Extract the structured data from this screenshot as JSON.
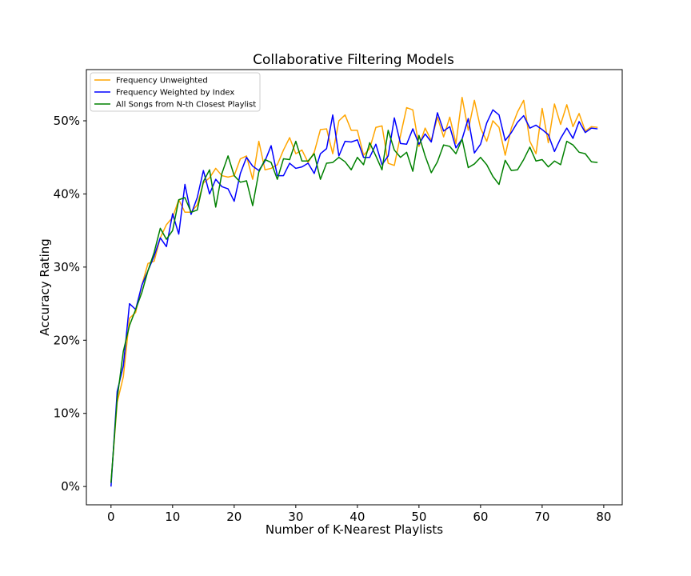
{
  "chart_data": {
    "type": "line",
    "title": "Collaborative Filtering Models",
    "xlabel": "Number of K-Nearest Playlists",
    "ylabel": "Accuracy Rating",
    "xlim": [
      -4,
      83
    ],
    "ylim": [
      -2.5,
      57
    ],
    "xticks": [
      0,
      10,
      20,
      30,
      40,
      50,
      60,
      70,
      80
    ],
    "xtick_labels": [
      "0",
      "10",
      "20",
      "30",
      "40",
      "50",
      "60",
      "70",
      "80"
    ],
    "yticks": [
      0,
      10,
      20,
      30,
      40,
      50
    ],
    "ytick_labels": [
      "0%",
      "10%",
      "20%",
      "30%",
      "40%",
      "50%"
    ],
    "grid": false,
    "legend_position": "top-left",
    "x": [
      0,
      1,
      2,
      3,
      4,
      5,
      6,
      7,
      8,
      9,
      10,
      11,
      12,
      13,
      14,
      15,
      16,
      17,
      18,
      19,
      20,
      21,
      22,
      23,
      24,
      25,
      26,
      27,
      28,
      29,
      30,
      31,
      32,
      33,
      34,
      35,
      36,
      37,
      38,
      39,
      40,
      41,
      42,
      43,
      44,
      45,
      46,
      47,
      48,
      49,
      50,
      51,
      52,
      53,
      54,
      55,
      56,
      57,
      58,
      59,
      60,
      61,
      62,
      63,
      64,
      65,
      66,
      67,
      68,
      69,
      70,
      71,
      72,
      73,
      74,
      75,
      76,
      77,
      78,
      79
    ],
    "series": [
      {
        "name": "Frequency Unweighted",
        "color": "#ffa500",
        "values": [
          0.5,
          11.5,
          15.0,
          23.0,
          23.8,
          27.5,
          30.5,
          30.8,
          34.0,
          35.8,
          36.8,
          39.2,
          37.5,
          37.5,
          38.5,
          41.5,
          42.2,
          43.5,
          42.5,
          42.3,
          42.5,
          44.8,
          45.2,
          42.0,
          47.2,
          43.3,
          43.5,
          44.0,
          46.0,
          47.7,
          45.5,
          46.0,
          44.3,
          45.7,
          48.8,
          48.9,
          45.5,
          50.0,
          50.8,
          48.7,
          48.7,
          45.3,
          46.2,
          49.1,
          49.3,
          44.2,
          43.9,
          48.0,
          51.8,
          51.5,
          46.5,
          49.0,
          47.3,
          50.5,
          47.8,
          50.5,
          46.9,
          53.2,
          48.7,
          52.8,
          49.0,
          47.2,
          50.0,
          49.1,
          45.3,
          49.0,
          51.2,
          52.8,
          47.2,
          45.5,
          51.7,
          47.0,
          52.3,
          49.5,
          52.2,
          49.2,
          51.0,
          48.6,
          49.2,
          49.1
        ]
      },
      {
        "name": "Frequency Weighted by Index",
        "color": "#0000ff",
        "values": [
          0.0,
          13.0,
          16.5,
          25.0,
          24.2,
          27.5,
          29.5,
          31.5,
          34.0,
          32.8,
          37.3,
          34.5,
          41.3,
          37.2,
          39.5,
          43.2,
          40.0,
          42.0,
          41.0,
          40.7,
          39.0,
          42.8,
          45.0,
          43.8,
          43.2,
          44.5,
          46.6,
          42.5,
          42.5,
          44.2,
          43.5,
          43.7,
          44.2,
          42.8,
          45.5,
          46.2,
          50.8,
          45.2,
          47.2,
          47.1,
          47.4,
          45.0,
          45.0,
          46.8,
          44.0,
          45.2,
          50.4,
          46.9,
          46.8,
          48.9,
          46.8,
          48.2,
          47.1,
          51.1,
          48.6,
          49.2,
          46.3,
          47.5,
          50.3,
          45.6,
          46.8,
          49.7,
          51.5,
          50.8,
          47.3,
          48.4,
          49.8,
          50.7,
          49.0,
          49.4,
          48.8,
          48.1,
          45.8,
          47.6,
          49.0,
          47.6,
          49.9,
          48.4,
          49.0,
          48.9
        ]
      },
      {
        "name": "All Songs from N-th Closest Playlist",
        "color": "#008000",
        "values": [
          0.5,
          12.0,
          18.5,
          22.0,
          24.2,
          26.5,
          29.5,
          32.0,
          35.3,
          33.8,
          35.0,
          39.2,
          39.5,
          37.5,
          37.8,
          41.7,
          43.3,
          38.2,
          42.8,
          45.2,
          42.5,
          41.6,
          41.8,
          38.4,
          43.0,
          44.7,
          44.3,
          42.0,
          44.8,
          44.7,
          47.2,
          44.5,
          44.5,
          45.5,
          42.0,
          44.2,
          44.3,
          45.0,
          44.4,
          43.3,
          45.0,
          44.0,
          47.0,
          45.2,
          43.3,
          48.7,
          46.0,
          45.0,
          45.7,
          43.1,
          48.0,
          45.2,
          42.9,
          44.4,
          46.7,
          46.5,
          45.5,
          47.5,
          43.6,
          44.1,
          45.0,
          44.0,
          42.4,
          41.3,
          44.6,
          43.2,
          43.3,
          44.7,
          46.4,
          44.5,
          44.7,
          43.7,
          44.5,
          44.0,
          47.2,
          46.7,
          45.7,
          45.5,
          44.4,
          44.3
        ]
      }
    ]
  }
}
